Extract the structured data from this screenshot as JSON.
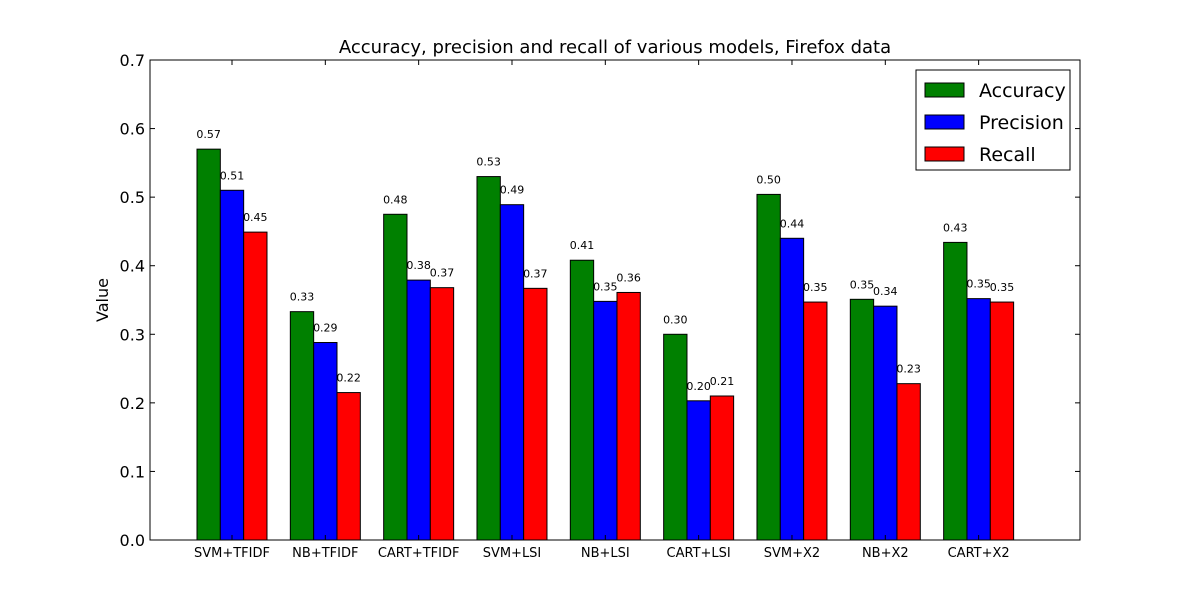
{
  "chart_data": {
    "type": "bar",
    "title": "Accuracy, precision and recall of various models, Firefox data",
    "xlabel": "",
    "ylabel": "Value",
    "ylim": [
      0,
      0.7
    ],
    "yticks": [
      "0.0",
      "0.1",
      "0.2",
      "0.3",
      "0.4",
      "0.5",
      "0.6",
      "0.7"
    ],
    "grid": false,
    "legend_position": "top-right",
    "categories": [
      "SVM+TFIDF",
      "NB+TFIDF",
      "CART+TFIDF",
      "SVM+LSI",
      "NB+LSI",
      "CART+LSI",
      "SVM+X2",
      "NB+X2",
      "CART+X2"
    ],
    "series": [
      {
        "name": "Accuracy",
        "color": "#008000",
        "values": [
          0.57,
          0.333,
          0.475,
          0.53,
          0.408,
          0.3,
          0.504,
          0.351,
          0.434
        ],
        "labels": [
          "0.57",
          "0.33",
          "0.48",
          "0.53",
          "0.41",
          "0.30",
          "0.50",
          "0.35",
          "0.43"
        ]
      },
      {
        "name": "Precision",
        "color": "#0000ff",
        "values": [
          0.51,
          0.288,
          0.379,
          0.489,
          0.348,
          0.203,
          0.44,
          0.341,
          0.352
        ],
        "labels": [
          "0.51",
          "0.29",
          "0.38",
          "0.49",
          "0.35",
          "0.20",
          "0.44",
          "0.34",
          "0.35"
        ]
      },
      {
        "name": "Recall",
        "color": "#ff0000",
        "values": [
          0.449,
          0.215,
          0.368,
          0.367,
          0.361,
          0.21,
          0.347,
          0.228,
          0.347
        ],
        "labels": [
          "0.45",
          "0.22",
          "0.37",
          "0.37",
          "0.36",
          "0.21",
          "0.35",
          "0.23",
          "0.35"
        ]
      }
    ]
  }
}
